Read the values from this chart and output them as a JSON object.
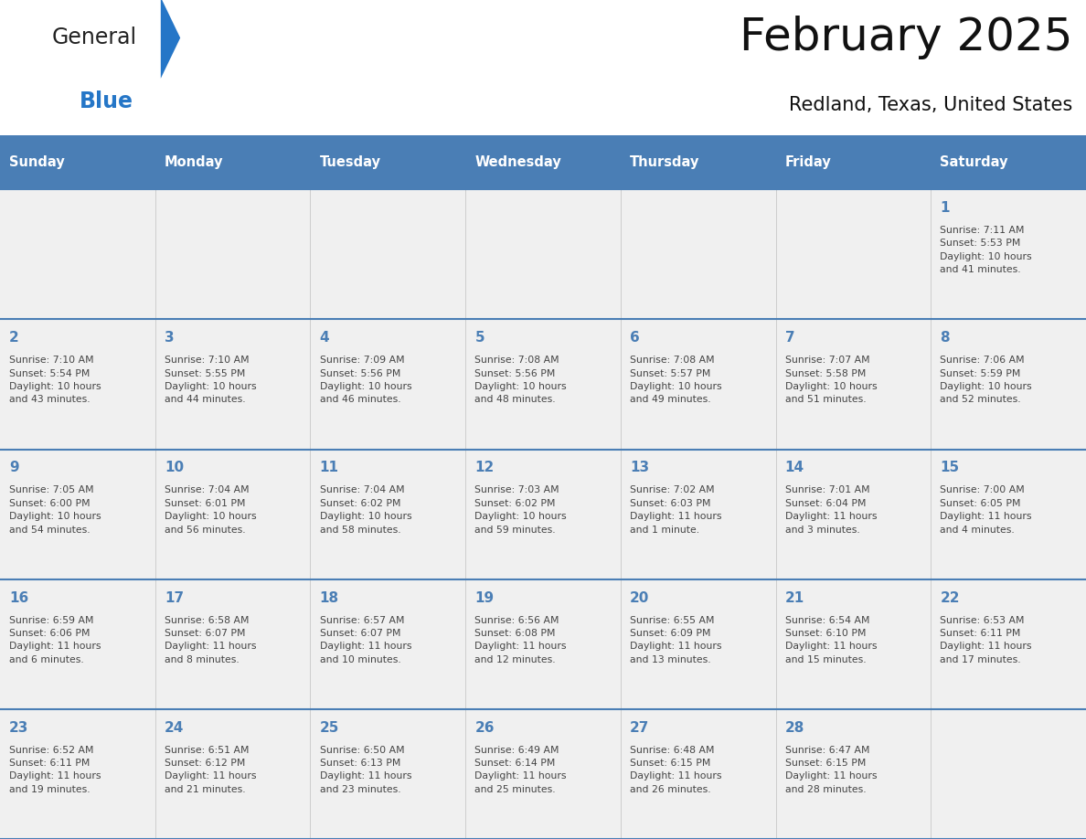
{
  "title": "February 2025",
  "subtitle": "Redland, Texas, United States",
  "header_bg": "#4a7eb5",
  "header_text_color": "#ffffff",
  "cell_bg": "#f0f0f0",
  "day_number_color": "#4a7eb5",
  "text_color": "#444444",
  "line_color": "#4a7eb5",
  "days_of_week": [
    "Sunday",
    "Monday",
    "Tuesday",
    "Wednesday",
    "Thursday",
    "Friday",
    "Saturday"
  ],
  "weeks": [
    [
      {
        "day": null,
        "info": null
      },
      {
        "day": null,
        "info": null
      },
      {
        "day": null,
        "info": null
      },
      {
        "day": null,
        "info": null
      },
      {
        "day": null,
        "info": null
      },
      {
        "day": null,
        "info": null
      },
      {
        "day": 1,
        "info": "Sunrise: 7:11 AM\nSunset: 5:53 PM\nDaylight: 10 hours\nand 41 minutes."
      }
    ],
    [
      {
        "day": 2,
        "info": "Sunrise: 7:10 AM\nSunset: 5:54 PM\nDaylight: 10 hours\nand 43 minutes."
      },
      {
        "day": 3,
        "info": "Sunrise: 7:10 AM\nSunset: 5:55 PM\nDaylight: 10 hours\nand 44 minutes."
      },
      {
        "day": 4,
        "info": "Sunrise: 7:09 AM\nSunset: 5:56 PM\nDaylight: 10 hours\nand 46 minutes."
      },
      {
        "day": 5,
        "info": "Sunrise: 7:08 AM\nSunset: 5:56 PM\nDaylight: 10 hours\nand 48 minutes."
      },
      {
        "day": 6,
        "info": "Sunrise: 7:08 AM\nSunset: 5:57 PM\nDaylight: 10 hours\nand 49 minutes."
      },
      {
        "day": 7,
        "info": "Sunrise: 7:07 AM\nSunset: 5:58 PM\nDaylight: 10 hours\nand 51 minutes."
      },
      {
        "day": 8,
        "info": "Sunrise: 7:06 AM\nSunset: 5:59 PM\nDaylight: 10 hours\nand 52 minutes."
      }
    ],
    [
      {
        "day": 9,
        "info": "Sunrise: 7:05 AM\nSunset: 6:00 PM\nDaylight: 10 hours\nand 54 minutes."
      },
      {
        "day": 10,
        "info": "Sunrise: 7:04 AM\nSunset: 6:01 PM\nDaylight: 10 hours\nand 56 minutes."
      },
      {
        "day": 11,
        "info": "Sunrise: 7:04 AM\nSunset: 6:02 PM\nDaylight: 10 hours\nand 58 minutes."
      },
      {
        "day": 12,
        "info": "Sunrise: 7:03 AM\nSunset: 6:02 PM\nDaylight: 10 hours\nand 59 minutes."
      },
      {
        "day": 13,
        "info": "Sunrise: 7:02 AM\nSunset: 6:03 PM\nDaylight: 11 hours\nand 1 minute."
      },
      {
        "day": 14,
        "info": "Sunrise: 7:01 AM\nSunset: 6:04 PM\nDaylight: 11 hours\nand 3 minutes."
      },
      {
        "day": 15,
        "info": "Sunrise: 7:00 AM\nSunset: 6:05 PM\nDaylight: 11 hours\nand 4 minutes."
      }
    ],
    [
      {
        "day": 16,
        "info": "Sunrise: 6:59 AM\nSunset: 6:06 PM\nDaylight: 11 hours\nand 6 minutes."
      },
      {
        "day": 17,
        "info": "Sunrise: 6:58 AM\nSunset: 6:07 PM\nDaylight: 11 hours\nand 8 minutes."
      },
      {
        "day": 18,
        "info": "Sunrise: 6:57 AM\nSunset: 6:07 PM\nDaylight: 11 hours\nand 10 minutes."
      },
      {
        "day": 19,
        "info": "Sunrise: 6:56 AM\nSunset: 6:08 PM\nDaylight: 11 hours\nand 12 minutes."
      },
      {
        "day": 20,
        "info": "Sunrise: 6:55 AM\nSunset: 6:09 PM\nDaylight: 11 hours\nand 13 minutes."
      },
      {
        "day": 21,
        "info": "Sunrise: 6:54 AM\nSunset: 6:10 PM\nDaylight: 11 hours\nand 15 minutes."
      },
      {
        "day": 22,
        "info": "Sunrise: 6:53 AM\nSunset: 6:11 PM\nDaylight: 11 hours\nand 17 minutes."
      }
    ],
    [
      {
        "day": 23,
        "info": "Sunrise: 6:52 AM\nSunset: 6:11 PM\nDaylight: 11 hours\nand 19 minutes."
      },
      {
        "day": 24,
        "info": "Sunrise: 6:51 AM\nSunset: 6:12 PM\nDaylight: 11 hours\nand 21 minutes."
      },
      {
        "day": 25,
        "info": "Sunrise: 6:50 AM\nSunset: 6:13 PM\nDaylight: 11 hours\nand 23 minutes."
      },
      {
        "day": 26,
        "info": "Sunrise: 6:49 AM\nSunset: 6:14 PM\nDaylight: 11 hours\nand 25 minutes."
      },
      {
        "day": 27,
        "info": "Sunrise: 6:48 AM\nSunset: 6:15 PM\nDaylight: 11 hours\nand 26 minutes."
      },
      {
        "day": 28,
        "info": "Sunrise: 6:47 AM\nSunset: 6:15 PM\nDaylight: 11 hours\nand 28 minutes."
      },
      {
        "day": null,
        "info": null
      }
    ]
  ],
  "logo_color_general": "#222222",
  "logo_color_blue": "#2576c7",
  "logo_color_triangle": "#2576c7"
}
